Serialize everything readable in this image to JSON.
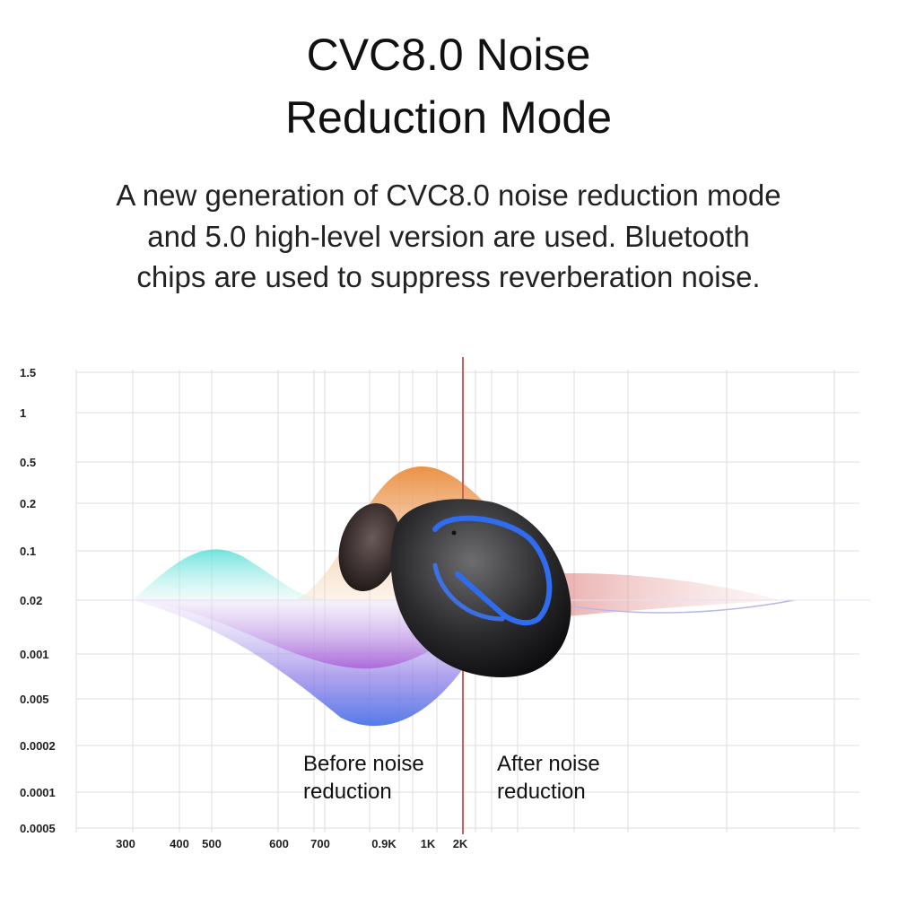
{
  "header": {
    "title": [
      "CVC8.0 Noise",
      "Reduction Mode"
    ],
    "description": [
      "A new generation of CVC8.0 noise reduction mode",
      "and 5.0 high-level version are used. Bluetooth",
      "chips are used to suppress reverberation noise."
    ]
  },
  "figure": {
    "y_labels": [
      "1.5",
      "1",
      "0.5",
      "0.2",
      "0.1",
      "0.02",
      "0.001",
      "0.005",
      "0.0002",
      "0.0001",
      "0.0005"
    ],
    "x_labels": [
      "300",
      "400",
      "500",
      "600",
      "700",
      "0.9K",
      "1K",
      "2K"
    ],
    "before_label": [
      "Before noise",
      "reduction"
    ],
    "after_label": [
      "After noise",
      "reduction"
    ]
  }
}
